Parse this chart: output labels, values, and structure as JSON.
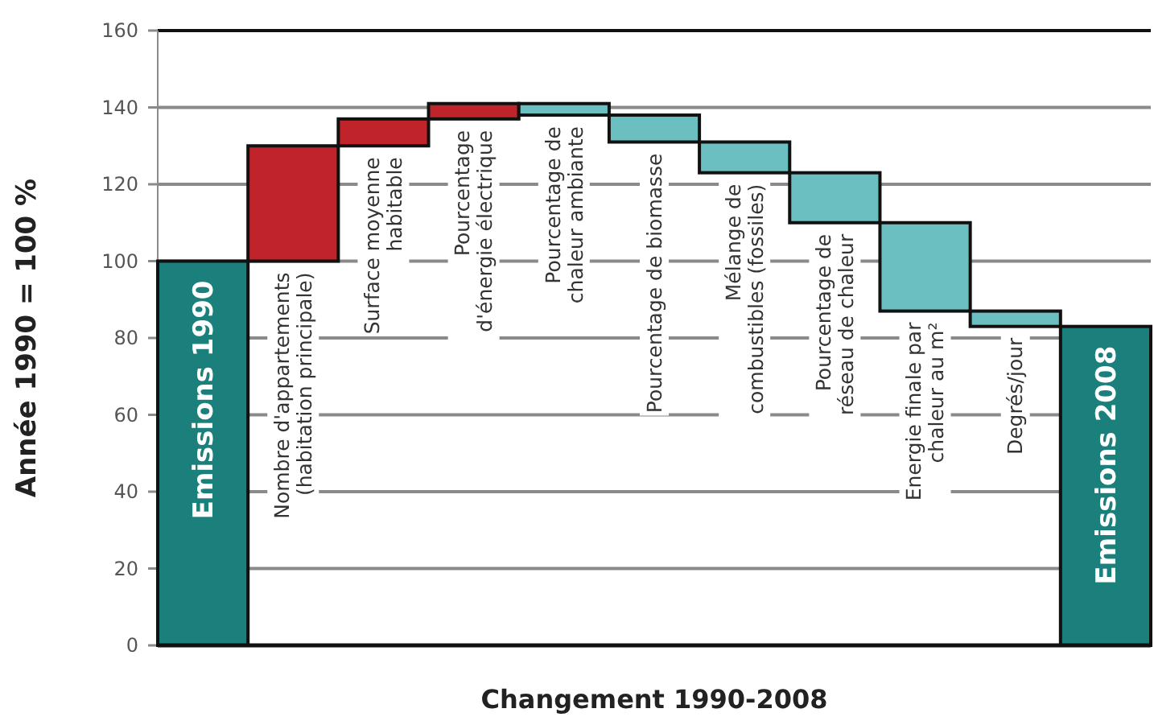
{
  "chart_data": {
    "type": "bar",
    "xlabel": "Changement 1990-2008",
    "ylabel": "Année 1990 = 100 %",
    "categories": [
      "Emissions 1990",
      "Nombre d'appartements\n(habitation principale)",
      "Surface moyenne\nhabitable",
      "Pourcentage\nd'énergie électrique",
      "Pourcentage de\nchaleur ambiante",
      "Pourcentage de biomasse",
      "Mélange de\ncombustibles (fossiles)",
      "Pourcentage de\nréseau de chaleur",
      "Energie finale par\nchaleur au m²",
      "Degrés/jour",
      "Emissions 2008"
    ],
    "values": [
      100,
      30,
      7,
      4,
      -3,
      -7,
      -8,
      -13,
      -23,
      -4,
      83
    ],
    "base": [
      0,
      100,
      130,
      137,
      141,
      138,
      131,
      123,
      110,
      87,
      0
    ],
    "colors": [
      "#1b7f7c",
      "#c0242a",
      "#c0242a",
      "#c0242a",
      "#6cbfc1",
      "#6cbfc1",
      "#6cbfc1",
      "#6cbfc1",
      "#6cbfc1",
      "#6cbfc1",
      "#1b7f7c"
    ],
    "ylim": [
      0,
      160
    ],
    "yticks": [
      0,
      20,
      40,
      60,
      80,
      100,
      120,
      140,
      160
    ],
    "grid": "y"
  }
}
